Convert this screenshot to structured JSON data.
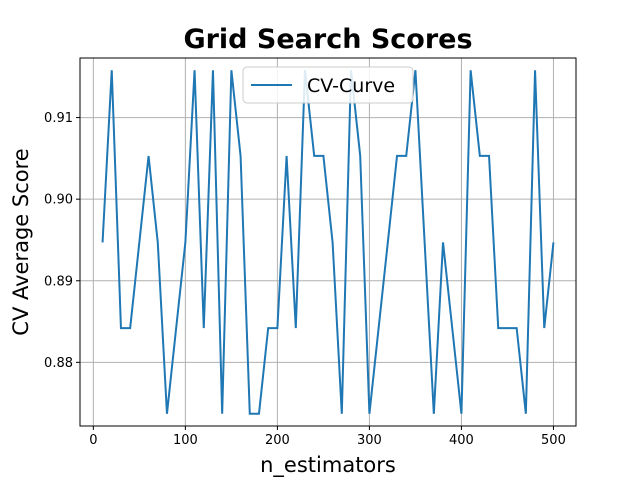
{
  "chart_data": {
    "type": "line",
    "title": "Grid Search Scores",
    "xlabel": "n_estimators",
    "ylabel": "CV Average Score",
    "xlim": [
      -14.5,
      524.5
    ],
    "ylim": [
      0.8722,
      0.9173
    ],
    "xticks": [
      0,
      100,
      200,
      300,
      400,
      500
    ],
    "xtick_labels": [
      "0",
      "100",
      "200",
      "300",
      "400",
      "500"
    ],
    "yticks": [
      0.88,
      0.89,
      0.9,
      0.91
    ],
    "ytick_labels": [
      "0.88",
      "0.89",
      "0.90",
      "0.91"
    ],
    "grid": true,
    "legend": {
      "position": "top-center",
      "entries": [
        "CV-Curve"
      ]
    },
    "series": [
      {
        "name": "CV-Curve",
        "color": "#1f77b4",
        "x": [
          10,
          20,
          30,
          40,
          50,
          60,
          70,
          80,
          90,
          100,
          110,
          120,
          130,
          140,
          150,
          160,
          170,
          180,
          190,
          200,
          210,
          220,
          230,
          240,
          250,
          260,
          270,
          280,
          290,
          300,
          310,
          320,
          330,
          340,
          350,
          360,
          370,
          380,
          390,
          400,
          410,
          420,
          430,
          440,
          450,
          460,
          470,
          480,
          490,
          500
        ],
        "y": [
          0.8947,
          0.9158,
          0.8842,
          0.8842,
          0.8947,
          0.9053,
          0.8947,
          0.8737,
          0.8842,
          0.8947,
          0.9158,
          0.8842,
          0.9158,
          0.8737,
          0.9158,
          0.9053,
          0.8737,
          0.8737,
          0.8842,
          0.8842,
          0.9053,
          0.8842,
          0.9158,
          0.9053,
          0.9053,
          0.8947,
          0.8737,
          0.9158,
          0.9053,
          0.8737,
          0.8842,
          0.8947,
          0.9053,
          0.9053,
          0.9158,
          0.8947,
          0.8737,
          0.8947,
          0.8842,
          0.8737,
          0.9158,
          0.9053,
          0.9053,
          0.8842,
          0.8842,
          0.8842,
          0.8737,
          0.9158,
          0.8842,
          0.8947
        ]
      }
    ]
  }
}
